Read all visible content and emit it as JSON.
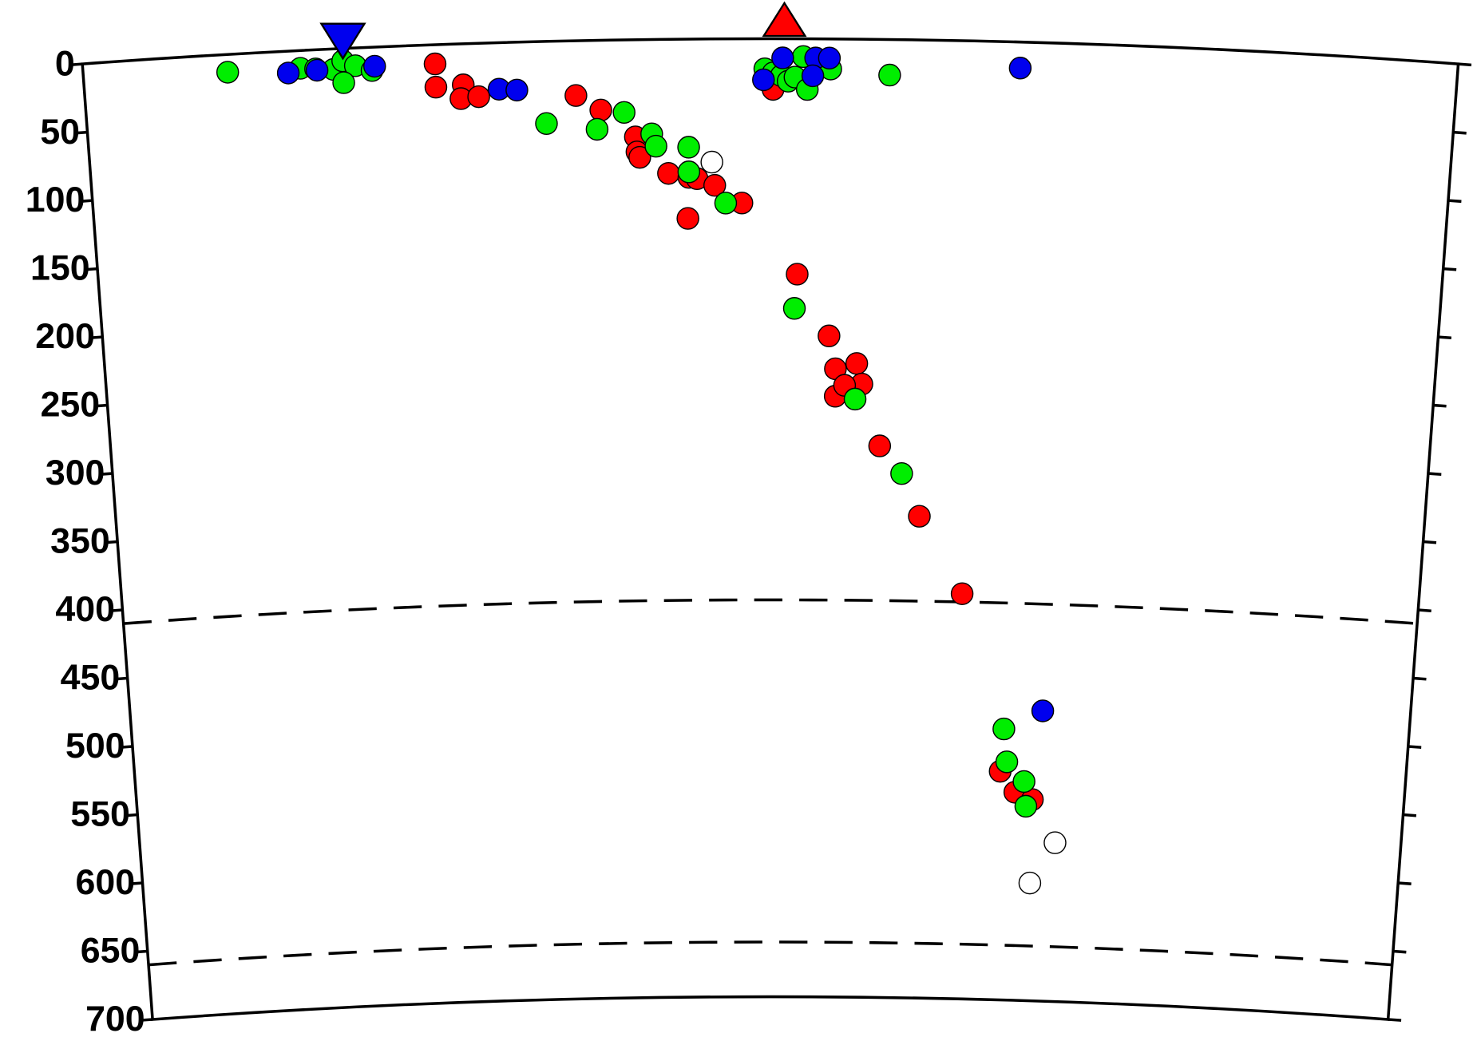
{
  "chart_data": {
    "type": "scatter",
    "xlim": [
      0,
      100
    ],
    "ylim": [
      0,
      700
    ],
    "y_inverted": true,
    "yticks": [
      0,
      50,
      100,
      150,
      200,
      250,
      300,
      350,
      400,
      450,
      500,
      550,
      600,
      650,
      700
    ],
    "reference_depths": [
      410,
      660
    ],
    "series": [
      {
        "color": "#ff0000",
        "x": [
          25.6,
          25.6,
          27.6,
          27.4,
          28.7,
          35.8,
          37.6,
          40.1,
          40.2,
          40.4,
          42.5,
          44.0,
          44.6,
          45.9,
          47.9,
          43.9,
          52.0,
          50.2,
          54.4,
          54.9,
          56.5,
          54.9,
          56.9,
          55.6,
          58.3,
          61.4,
          64.8,
          68.1,
          69.3,
          70.7
        ],
        "values": [
          14,
          31,
          30,
          40,
          39,
          40,
          51,
          71,
          82,
          86,
          98,
          101,
          102,
          107,
          120,
          131,
          172,
          37,
          217,
          241,
          237,
          261,
          252,
          253,
          297,
          348,
          404,
          533,
          548,
          553
        ]
      },
      {
        "color": "#00ee00",
        "x": [
          10.5,
          15.8,
          16.9,
          18.2,
          18.9,
          19.8,
          21.0,
          18.9,
          33.6,
          37.3,
          39.3,
          41.3,
          41.6,
          44.0,
          44.0,
          46.7,
          49.6,
          50.2,
          50.8,
          51.3,
          51.8,
          52.4,
          52.7,
          54.4,
          58.7,
          51.8,
          56.4,
          60.0,
          68.3,
          68.6,
          70.0,
          70.2
        ],
        "values": [
          13,
          13,
          14,
          15,
          9,
          13,
          17,
          25,
          60,
          65,
          53,
          69,
          78,
          79,
          97,
          120,
          22,
          25,
          27,
          31,
          28,
          13,
          37,
          22,
          26,
          197,
          263,
          317,
          502,
          526,
          540,
          558
        ]
      },
      {
        "color": "#0000ee",
        "x": [
          14.9,
          17.0,
          21.2,
          30.2,
          31.5,
          50.9,
          53.3,
          54.3,
          49.5,
          53.1,
          68.2,
          71.3
        ],
        "values": [
          16,
          15,
          14,
          34,
          35,
          14,
          14,
          14,
          30,
          27,
          19,
          488
        ]
      },
      {
        "color": "#ffffff",
        "x": [
          45.7,
          72.6,
          70.7
        ],
        "values": [
          90,
          584,
          614
        ]
      }
    ]
  }
}
